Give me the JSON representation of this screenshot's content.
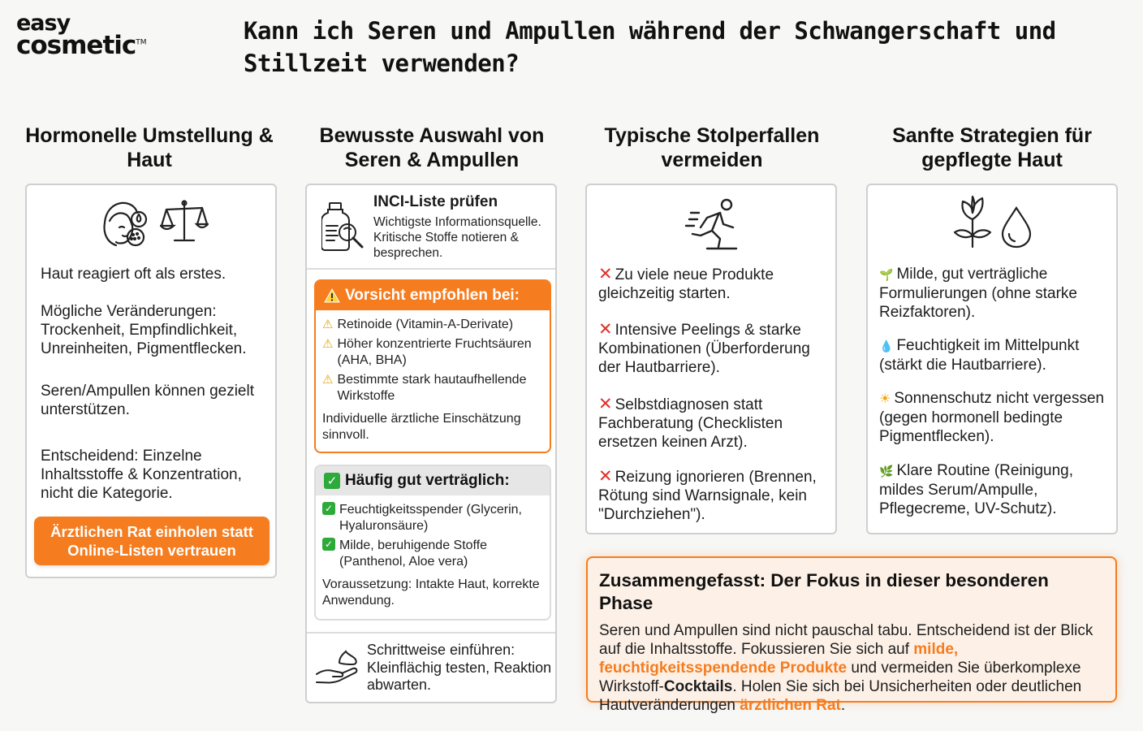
{
  "logo": {
    "line1": "easy",
    "line2": "cosmetic",
    "tm": "TM"
  },
  "title": "Kann ich Seren und Ampullen während der Schwangerschaft und Stillzeit verwenden?",
  "col1": {
    "heading": "Hormonelle Umstellung & Haut",
    "icons": [
      "face-skin-icon",
      "scale-icon"
    ],
    "p1": "Haut reagiert oft als erstes.",
    "p2": "Mögliche Veränderungen: Trockenheit, Empfindlichkeit, Unreinheiten, Pigmentflecken.",
    "p3": "Seren/Ampullen können gezielt unterstützen.",
    "p4": "Entscheidend: Einzelne Inhaltsstoffe & Konzentration, nicht die Kategorie.",
    "button": "Ärztlichen Rat einholen statt Online-Listen vertrauen"
  },
  "col2": {
    "heading": "Bewusste Auswahl von Seren & Ampullen",
    "inci_title": "INCI-Liste prüfen",
    "inci_text": "Wichtigste Informationsquelle. Kritische Stoffe notieren & besprechen.",
    "warn_title": "Vorsicht empfohlen bei:",
    "warn_items": [
      "Retinoide (Vitamin-A-Derivate)",
      "Höher konzentrierte Fruchtsäuren (AHA, BHA)",
      "Bestimmte stark hautaufhellende Wirkstoffe"
    ],
    "warn_note": "Individuelle ärztliche Einschätzung sinnvoll.",
    "ok_title": "Häufig gut verträglich:",
    "ok_items": [
      "Feuchtigkeitsspender (Glycerin, Hyaluronsäure)",
      "Milde, beruhigende Stoffe (Panthenol, Aloe vera)"
    ],
    "ok_note": "Voraussetzung: Intakte Haut, korrekte Anwendung.",
    "step_text": "Schrittweise einführen: Kleinflächig testen, Reaktion abwarten."
  },
  "col3": {
    "heading": "Typische Stolperfallen vermeiden",
    "icon": "stumbling-person-icon",
    "items": [
      "Zu viele neue Produkte gleichzeitig starten.",
      "Intensive Peelings & starke Kombinationen (Überforderung der Hautbarriere).",
      "Selbstdiagnosen statt Fachberatung (Checklisten ersetzen keinen Arzt).",
      "Reizung ignorieren (Brennen, Rötung sind Warnsignale, kein \"Durchziehen\")."
    ]
  },
  "col4": {
    "heading": "Sanfte Strategien für gepflegte Haut",
    "icons": [
      "plant-icon",
      "drop-icon"
    ],
    "items": [
      {
        "icon": "🌱",
        "text": "Milde, gut verträgliche Formulierungen (ohne starke Reizfaktoren)."
      },
      {
        "icon": "💧",
        "text": "Feuchtigkeit im Mittelpunkt (stärkt die Hautbarriere)."
      },
      {
        "icon": "☀",
        "text": "Sonnenschutz nicht vergessen (gegen hormonell bedingte Pigmentflecken)."
      },
      {
        "icon": "🌿",
        "text": "Klare Routine (Reinigung, mildes Serum/Ampulle, Pflegecreme, UV-Schutz)."
      }
    ]
  },
  "summary": {
    "title": "Zusammengefasst: Der Fokus in dieser besonderen Phase",
    "t1": "Seren und Ampullen sind nicht pauschal tabu. Entscheidend ist der Blick auf die Inhaltsstoffe. Fokussieren Sie sich auf ",
    "h1": "milde, feuchtigkeitsspendende Produkte",
    "t2": " und vermeiden Sie überkomplexe Wirkstoff-",
    "b1": "Cocktails",
    "t3": ". Holen Sie sich bei Unsicherheiten oder deutlichen Hautveränderungen ",
    "h2": "ärztlichen Rat",
    "t4": "."
  },
  "colors": {
    "accent": "#f57c1f",
    "cross": "#e03127",
    "check": "#2eaa3a",
    "warn": "#e8a200"
  }
}
